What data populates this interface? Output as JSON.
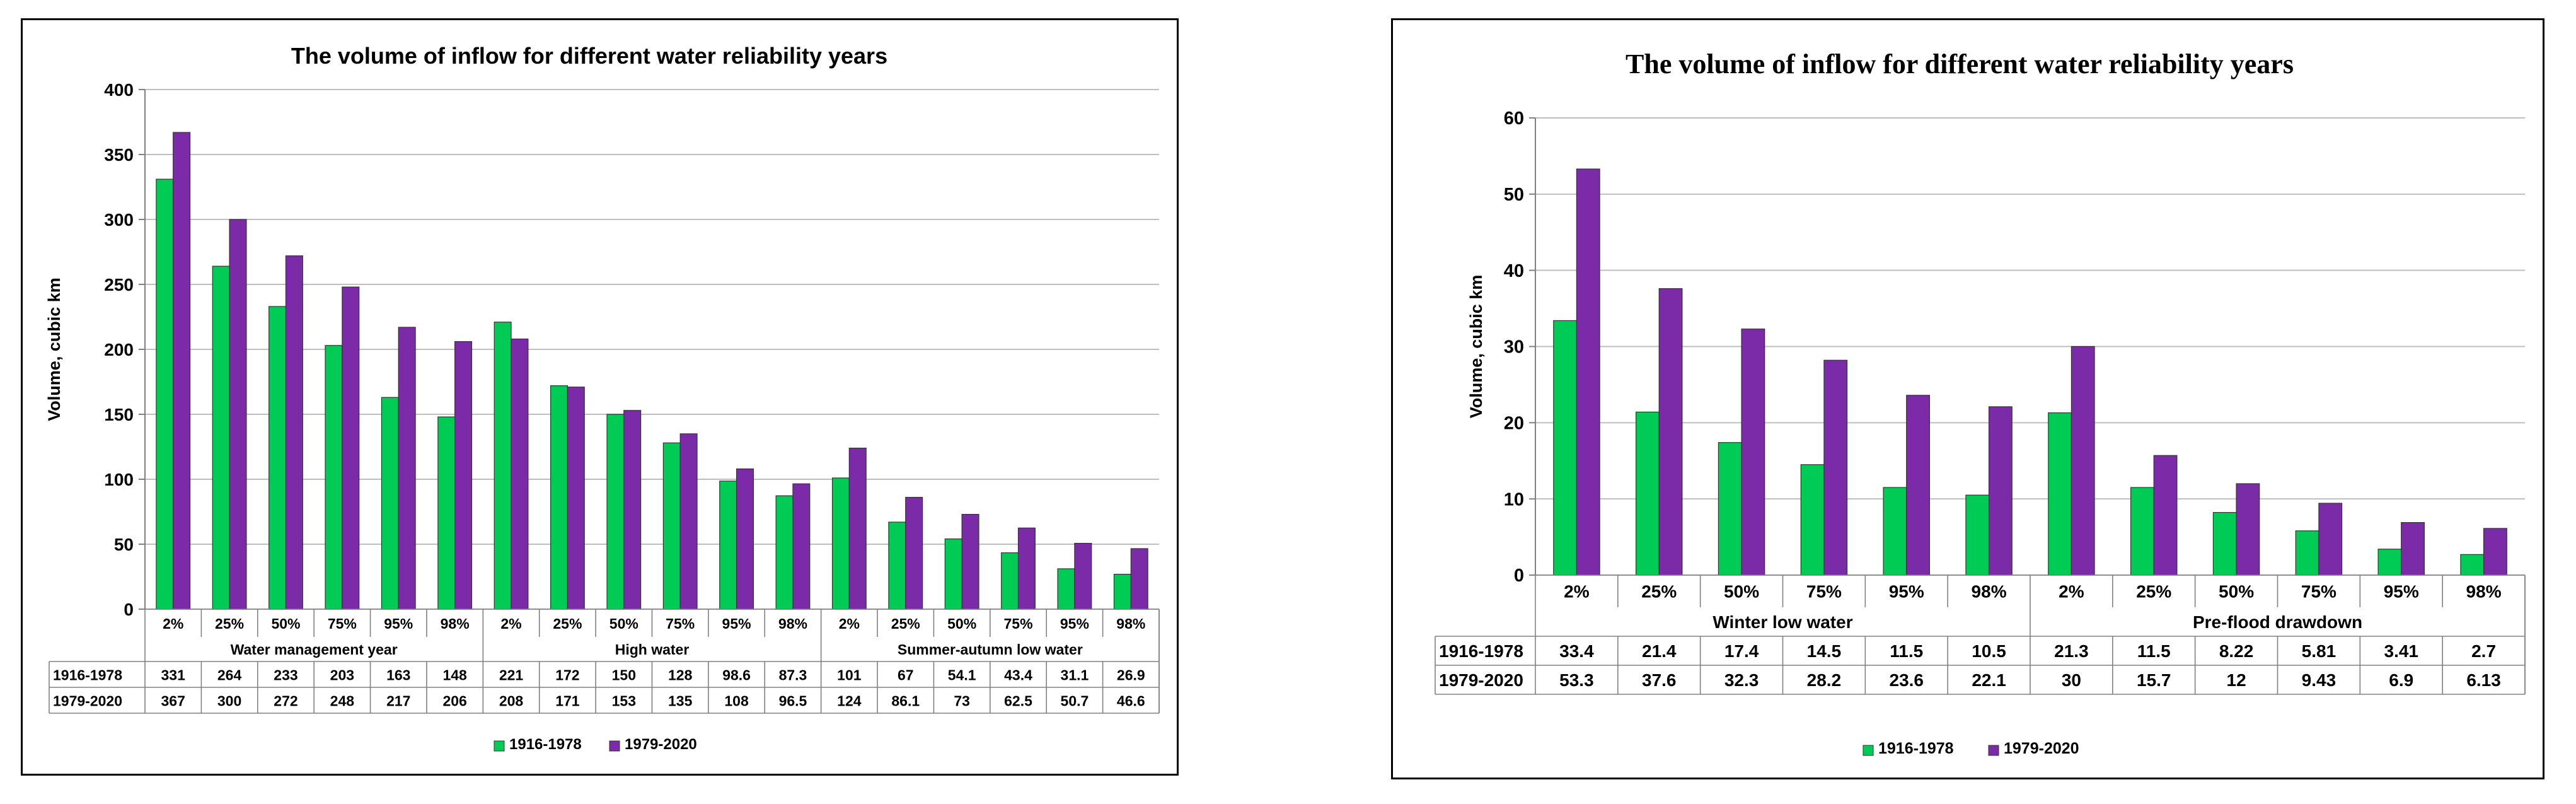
{
  "colors": {
    "s1": "#00CC55",
    "s2": "#7B2AA8",
    "grid": "#BFBFBF",
    "frame": "#000000"
  },
  "chart_data": [
    {
      "type": "bar",
      "title": "The volume of inflow for different water reliability years",
      "ylabel": "Volume, cubic km",
      "ylim": [
        0,
        400
      ],
      "yticks": [
        "0",
        "50",
        "100",
        "150",
        "200",
        "250",
        "300",
        "350",
        "400"
      ],
      "categories": [
        "2%",
        "25%",
        "50%",
        "75%",
        "95%",
        "98%",
        "2%",
        "25%",
        "50%",
        "75%",
        "95%",
        "98%",
        "2%",
        "25%",
        "50%",
        "75%",
        "95%",
        "98%"
      ],
      "groups": [
        {
          "label": "Water management year",
          "count": 6
        },
        {
          "label": "High water",
          "count": 6
        },
        {
          "label": "Summer-autumn low water",
          "count": 6
        }
      ],
      "series": [
        {
          "name": "1916-1978",
          "values": [
            331,
            264,
            233,
            203,
            163,
            148,
            221,
            172,
            150,
            128,
            98.6,
            87.3,
            101,
            67,
            54.1,
            43.4,
            31.1,
            26.9
          ],
          "labels": [
            "331",
            "264",
            "233",
            "203",
            "163",
            "148",
            "221",
            "172",
            "150",
            "128",
            "98.6",
            "87.3",
            "101",
            "67",
            "54.1",
            "43.4",
            "31.1",
            "26.9"
          ]
        },
        {
          "name": "1979-2020",
          "values": [
            367,
            300,
            272,
            248,
            217,
            206,
            208,
            171,
            153,
            135,
            108,
            96.5,
            124,
            86.1,
            73,
            62.5,
            50.7,
            46.6
          ],
          "labels": [
            "367",
            "300",
            "272",
            "248",
            "217",
            "206",
            "208",
            "171",
            "153",
            "135",
            "108",
            "96.5",
            "124",
            "86.1",
            "73",
            "62.5",
            "50.7",
            "46.6"
          ]
        }
      ],
      "legend_position": "bottom"
    },
    {
      "type": "bar",
      "title": "The volume of inflow for different water reliability years",
      "ylabel": "Volume, cubic km",
      "ylim": [
        0,
        60
      ],
      "yticks": [
        "0",
        "10",
        "20",
        "30",
        "40",
        "50",
        "60"
      ],
      "categories": [
        "2%",
        "25%",
        "50%",
        "75%",
        "95%",
        "98%",
        "2%",
        "25%",
        "50%",
        "75%",
        "95%",
        "98%"
      ],
      "groups": [
        {
          "label": "Winter low water",
          "count": 6
        },
        {
          "label": "Pre-flood drawdown",
          "count": 6
        }
      ],
      "series": [
        {
          "name": "1916-1978",
          "values": [
            33.4,
            21.4,
            17.4,
            14.5,
            11.5,
            10.5,
            21.3,
            11.5,
            8.22,
            5.81,
            3.41,
            2.7
          ],
          "labels": [
            "33.4",
            "21.4",
            "17.4",
            "14.5",
            "11.5",
            "10.5",
            "21.3",
            "11.5",
            "8.22",
            "5.81",
            "3.41",
            "2.7"
          ]
        },
        {
          "name": "1979-2020",
          "values": [
            53.3,
            37.6,
            32.3,
            28.2,
            23.6,
            22.1,
            30,
            15.7,
            12,
            9.43,
            6.9,
            6.13
          ],
          "labels": [
            "53.3",
            "37.6",
            "32.3",
            "28.2",
            "23.6",
            "22.1",
            "30",
            "15.7",
            "12",
            "9.43",
            "6.9",
            "6.13"
          ]
        }
      ],
      "legend_position": "bottom"
    }
  ]
}
